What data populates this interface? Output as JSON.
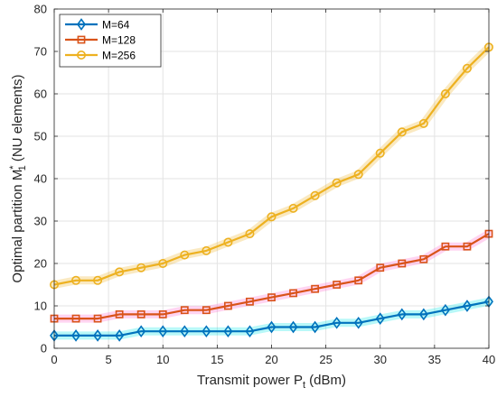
{
  "chart_data": {
    "type": "line",
    "title": "",
    "xlabel": "Transmit power P_t (dBm)",
    "ylabel": "Optimal partition M_1^* (NU elements)",
    "xlim": [
      0,
      40
    ],
    "ylim": [
      0,
      80
    ],
    "xticks": [
      0,
      5,
      10,
      15,
      20,
      25,
      30,
      35,
      40
    ],
    "yticks": [
      0,
      10,
      20,
      30,
      40,
      50,
      60,
      70,
      80
    ],
    "grid": true,
    "legend_position": "top-left",
    "x": [
      0,
      2,
      4,
      6,
      8,
      10,
      12,
      14,
      16,
      18,
      20,
      22,
      24,
      26,
      28,
      30,
      32,
      34,
      36,
      38,
      40
    ],
    "series": [
      {
        "name": "M=64",
        "marker": "diamond",
        "color": "#0072BD",
        "glow": "#00E5E5",
        "values": [
          3,
          3,
          3,
          3,
          4,
          4,
          4,
          4,
          4,
          4,
          5,
          5,
          5,
          6,
          6,
          7,
          8,
          8,
          9,
          10,
          11
        ]
      },
      {
        "name": "M=128",
        "marker": "square",
        "color": "#D95319",
        "glow": "#FF66CC",
        "values": [
          7,
          7,
          7,
          8,
          8,
          8,
          9,
          9,
          10,
          11,
          12,
          13,
          14,
          15,
          16,
          19,
          20,
          21,
          24,
          24,
          27
        ]
      },
      {
        "name": "M=256",
        "marker": "circle",
        "color": "#EDB120",
        "glow": "#EDB120",
        "values": [
          15,
          16,
          16,
          18,
          19,
          20,
          22,
          23,
          25,
          27,
          31,
          33,
          36,
          39,
          41,
          46,
          51,
          53,
          60,
          66,
          71
        ]
      }
    ]
  }
}
